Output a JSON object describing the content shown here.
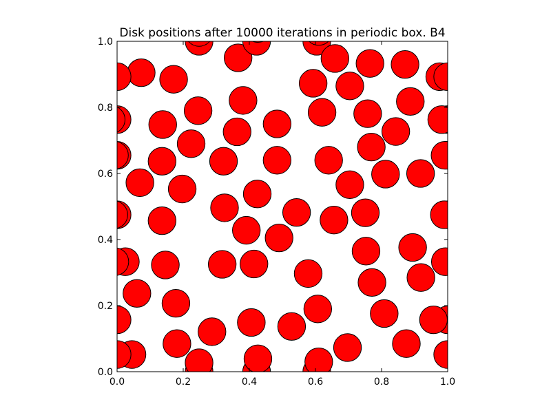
{
  "chart_data": {
    "type": "scatter",
    "title": "Disk positions after 10000 iterations in periodic box. B4",
    "xlabel": "",
    "ylabel": "",
    "xlim": [
      0,
      1
    ],
    "ylim": [
      0,
      1
    ],
    "xticks": [
      "0.0",
      "0.2",
      "0.4",
      "0.6",
      "0.8",
      "1.0"
    ],
    "yticks": [
      "0.0",
      "0.2",
      "0.4",
      "0.6",
      "0.8",
      "1.0"
    ],
    "grid": false,
    "legend": "none",
    "marker_color": "#ff0000",
    "edge_color": "#000000",
    "disk_radius": 0.042,
    "periodic": true,
    "points": [
      [
        0.073,
        0.905
      ],
      [
        0.171,
        0.885
      ],
      [
        0.366,
        0.95
      ],
      [
        0.248,
        1.0
      ],
      [
        0.422,
        1.0
      ],
      [
        0.604,
        1.0
      ],
      [
        0.659,
        0.948
      ],
      [
        0.765,
        0.933
      ],
      [
        0.871,
        0.93
      ],
      [
        0.976,
        0.893
      ],
      [
        0.0,
        0.893
      ],
      [
        0.593,
        0.873
      ],
      [
        0.704,
        0.865
      ],
      [
        0.381,
        0.821
      ],
      [
        0.887,
        0.818
      ],
      [
        0.245,
        0.79
      ],
      [
        0.62,
        0.785
      ],
      [
        0.758,
        0.781
      ],
      [
        0.0,
        0.763
      ],
      [
        0.138,
        0.748
      ],
      [
        0.484,
        0.75
      ],
      [
        0.982,
        0.763
      ],
      [
        0.363,
        0.726
      ],
      [
        0.843,
        0.727
      ],
      [
        0.224,
        0.69
      ],
      [
        0.769,
        0.68
      ],
      [
        0.0,
        0.655
      ],
      [
        0.136,
        0.637
      ],
      [
        0.322,
        0.637
      ],
      [
        0.484,
        0.64
      ],
      [
        0.64,
        0.64
      ],
      [
        0.992,
        0.655
      ],
      [
        0.812,
        0.598
      ],
      [
        0.918,
        0.6
      ],
      [
        0.069,
        0.572
      ],
      [
        0.704,
        0.566
      ],
      [
        0.197,
        0.553
      ],
      [
        0.424,
        0.538
      ],
      [
        0.0,
        0.475
      ],
      [
        0.325,
        0.496
      ],
      [
        0.543,
        0.482
      ],
      [
        0.751,
        0.481
      ],
      [
        0.99,
        0.475
      ],
      [
        0.136,
        0.457
      ],
      [
        0.656,
        0.459
      ],
      [
        0.391,
        0.428
      ],
      [
        0.49,
        0.405
      ],
      [
        0.753,
        0.365
      ],
      [
        0.894,
        0.376
      ],
      [
        0.025,
        0.333
      ],
      [
        0.146,
        0.323
      ],
      [
        0.318,
        0.325
      ],
      [
        0.414,
        0.326
      ],
      [
        0.993,
        0.333
      ],
      [
        0.578,
        0.297
      ],
      [
        0.919,
        0.285
      ],
      [
        0.771,
        0.27
      ],
      [
        0.06,
        0.237
      ],
      [
        0.178,
        0.207
      ],
      [
        0.607,
        0.19
      ],
      [
        0.808,
        0.176
      ],
      [
        0.0,
        0.157
      ],
      [
        0.406,
        0.149
      ],
      [
        0.957,
        0.157
      ],
      [
        0.528,
        0.137
      ],
      [
        0.287,
        0.121
      ],
      [
        0.181,
        0.085
      ],
      [
        0.697,
        0.073
      ],
      [
        0.875,
        0.085
      ],
      [
        0.045,
        0.052
      ],
      [
        0.248,
        0.027
      ],
      [
        0.426,
        0.039
      ],
      [
        0.61,
        0.03
      ],
      [
        1.0,
        0.052
      ]
    ]
  }
}
